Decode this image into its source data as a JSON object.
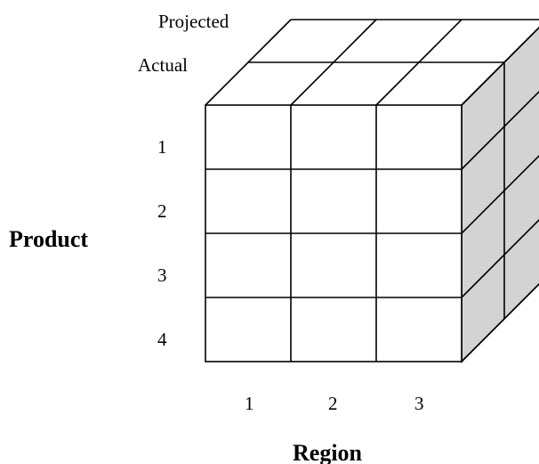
{
  "cube": {
    "depth_labels": [
      "Actual",
      "Projected"
    ],
    "row_labels": [
      "1",
      "2",
      "3",
      "4"
    ],
    "column_labels": [
      "1",
      "2",
      "3"
    ],
    "row_axis_title": "Product",
    "column_axis_title": "Region"
  },
  "colors": {
    "side_face": "#d3d3d3",
    "lines": "#000000",
    "background": "#ffffff"
  }
}
